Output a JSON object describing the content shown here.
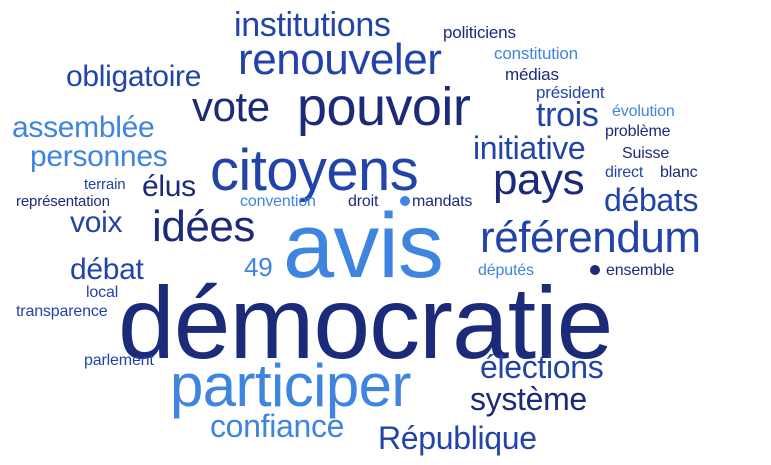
{
  "colors": {
    "navy": "#1c2a7a",
    "blue": "#2244a8",
    "light": "#3f84de"
  },
  "words": [
    {
      "text": "démocratie",
      "color": "navy"
    },
    {
      "text": "avis",
      "color": "light"
    },
    {
      "text": "participer",
      "color": "light"
    },
    {
      "text": "citoyens",
      "color": "blue"
    },
    {
      "text": "pouvoir",
      "color": "navy"
    },
    {
      "text": "référendum",
      "color": "blue"
    },
    {
      "text": "renouveler",
      "color": "blue"
    },
    {
      "text": "vote",
      "color": "navy"
    },
    {
      "text": "idées",
      "color": "navy"
    },
    {
      "text": "pays",
      "color": "navy"
    },
    {
      "text": "institutions",
      "color": "blue"
    },
    {
      "text": "obligatoire",
      "color": "blue"
    },
    {
      "text": "assemblée",
      "color": "light"
    },
    {
      "text": "personnes",
      "color": "light"
    },
    {
      "text": "initiative",
      "color": "blue"
    },
    {
      "text": "trois",
      "color": "blue"
    },
    {
      "text": "débats",
      "color": "blue"
    },
    {
      "text": "élus",
      "color": "navy"
    },
    {
      "text": "voix",
      "color": "blue"
    },
    {
      "text": "débat",
      "color": "blue"
    },
    {
      "text": "49",
      "color": "light"
    },
    {
      "text": "élections",
      "color": "blue"
    },
    {
      "text": "système",
      "color": "navy"
    },
    {
      "text": "confiance",
      "color": "light"
    },
    {
      "text": "République",
      "color": "blue"
    },
    {
      "text": "politiciens",
      "color": "navy"
    },
    {
      "text": "constitution",
      "color": "light"
    },
    {
      "text": "médias",
      "color": "navy"
    },
    {
      "text": "président",
      "color": "blue"
    },
    {
      "text": "évolution",
      "color": "light"
    },
    {
      "text": "problème",
      "color": "navy"
    },
    {
      "text": "Suisse",
      "color": "navy"
    },
    {
      "text": "direct",
      "color": "blue"
    },
    {
      "text": "blanc",
      "color": "navy"
    },
    {
      "text": "terrain",
      "color": "blue"
    },
    {
      "text": "représentation",
      "color": "navy"
    },
    {
      "text": "convention",
      "color": "light"
    },
    {
      "text": "droit",
      "color": "navy"
    },
    {
      "text": "mandats",
      "color": "navy"
    },
    {
      "text": "députés",
      "color": "light"
    },
    {
      "text": "ensemble",
      "color": "navy"
    },
    {
      "text": "local",
      "color": "blue"
    },
    {
      "text": "transparence",
      "color": "blue"
    },
    {
      "text": "parlement",
      "color": "blue"
    }
  ],
  "dots": [
    {
      "name": "dot-near-mandats",
      "color": "light"
    },
    {
      "name": "dot-near-ensemble",
      "color": "navy"
    }
  ]
}
